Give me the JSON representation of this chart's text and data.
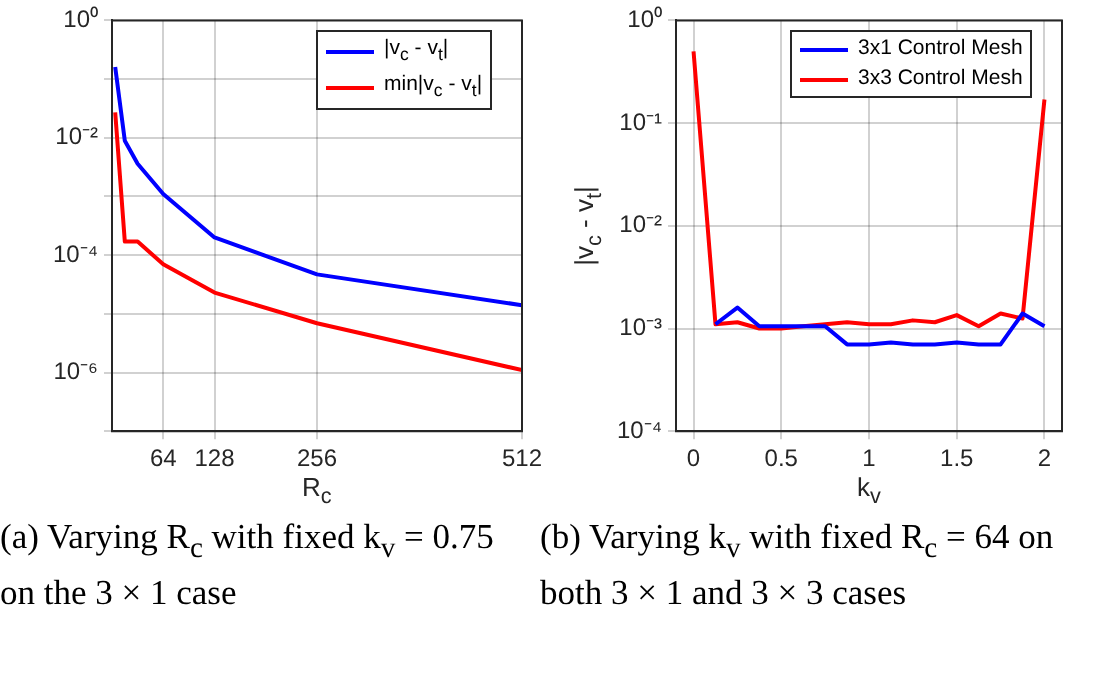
{
  "chart_data": [
    {
      "type": "line",
      "xlabel": "R$_{c}$",
      "annotations": [
        "(a) Varying R$_{c}$ with fixed k$_{v}$ = 0.75 on the 3 × 1 case"
      ],
      "x": [
        4,
        16,
        32,
        64,
        128,
        256,
        512
      ],
      "series": [
        {
          "name": "|v$_{c}$ - v$_{t}$|",
          "color": "#0000ff",
          "values": [
            0.16,
            0.0089,
            0.0036,
            0.0011,
            0.0002,
            4.7e-05,
            1.4e-05
          ]
        },
        {
          "name": "min|v$_{c}$ - v$_{t}$|",
          "color": "#ff0000",
          "values": [
            0.027,
            0.00017,
            0.00017,
            7e-05,
            2.3e-05,
            6.9e-06,
            1.1e-06
          ]
        }
      ],
      "xlim": [
        0,
        512
      ],
      "xticks": [
        64,
        128,
        256,
        512
      ],
      "ylim": [
        1e-07,
        1
      ],
      "yticks": [
        {
          "value": 1,
          "label": "10⁰"
        },
        {
          "value": 0.1,
          "label": null
        },
        {
          "value": 0.01,
          "label": "10⁻²"
        },
        {
          "value": 0.001,
          "label": null
        },
        {
          "value": 0.0001,
          "label": "10⁻⁴"
        },
        {
          "value": 1e-05,
          "label": null
        },
        {
          "value": 1e-06,
          "label": "10⁻⁶"
        },
        {
          "value": 1e-07,
          "label": null
        }
      ],
      "log": "y",
      "grid": true,
      "legend": "top right",
      "marker": "none"
    },
    {
      "type": "line",
      "xlabel": "k$_{v}$",
      "ylabel": "|v$_{c}$ - v$_{t}$|",
      "annotations": [
        "(b) Varying k$_{v}$ with fixed R$_{c}$ = 64 on both 3 × 1 and 3 × 3 cases"
      ],
      "x": [
        0,
        0.125,
        0.25,
        0.375,
        0.5,
        0.625,
        0.75,
        0.875,
        1,
        1.125,
        1.25,
        1.375,
        1.5,
        1.625,
        1.75,
        1.875,
        2
      ],
      "series": [
        {
          "name": "3x1 Control Mesh",
          "color": "#0000ff",
          "values": [
            null,
            0.0011,
            0.0016,
            0.00105,
            0.00105,
            0.00105,
            0.00105,
            0.0007,
            0.0007,
            0.00073,
            0.0007,
            0.0007,
            0.00073,
            0.0007,
            0.0007,
            0.0014,
            0.00105
          ]
        },
        {
          "name": "3x3 Control Mesh",
          "color": "#ff0000",
          "values": [
            0.5,
            0.0011,
            0.00115,
            0.001,
            0.001,
            0.00105,
            0.0011,
            0.00115,
            0.0011,
            0.0011,
            0.0012,
            0.00115,
            0.00135,
            0.00105,
            0.0014,
            0.00125,
            0.17
          ]
        }
      ],
      "xlim": [
        -0.1,
        2.1
      ],
      "xticks": [
        0,
        0.5,
        1,
        1.5,
        2
      ],
      "ylim": [
        0.0001,
        1
      ],
      "yticks": [
        {
          "value": 1,
          "label": "10⁰"
        },
        {
          "value": 0.1,
          "label": "10⁻¹"
        },
        {
          "value": 0.01,
          "label": "10⁻²"
        },
        {
          "value": 0.001,
          "label": "10⁻³"
        },
        {
          "value": 0.0001,
          "label": "10⁻⁴"
        }
      ],
      "log": "y",
      "grid": true,
      "legend": "top right",
      "marker": "none"
    }
  ]
}
